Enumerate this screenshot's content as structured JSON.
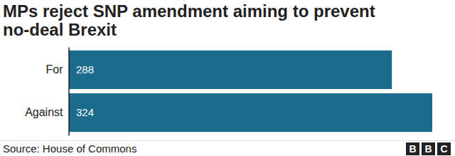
{
  "chart_data": {
    "type": "bar",
    "orientation": "horizontal",
    "title": "MPs reject SNP amendment aiming to prevent no-deal Brexit",
    "categories": [
      "For",
      "Against"
    ],
    "values": [
      288,
      324
    ],
    "color": "#1b6b8d",
    "xlim": [
      0,
      324
    ],
    "tick_labels": "y",
    "data_labels": true,
    "grid": false,
    "source": "Source: House of Commons",
    "credit": "BBC"
  }
}
